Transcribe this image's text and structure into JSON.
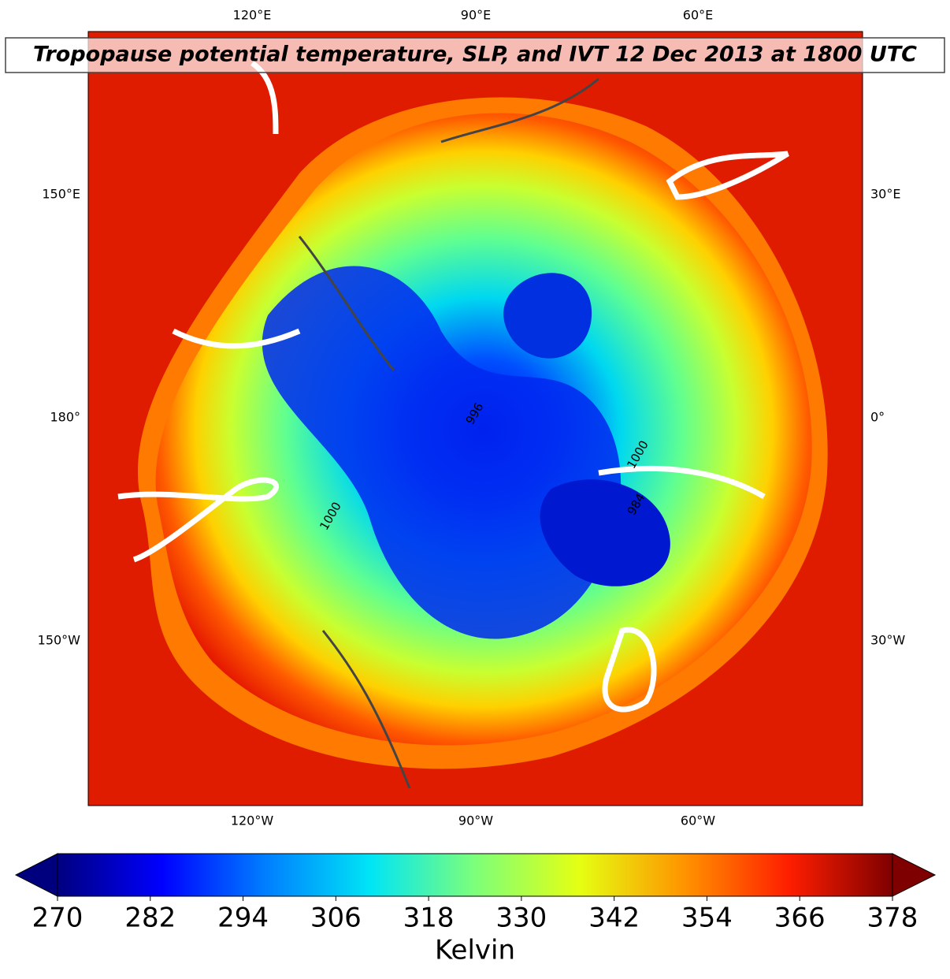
{
  "map": {
    "title": "Tropopause potential temperature, SLP, and IVT 12 Dec 2013 at 1800 UTC",
    "lon_labels": {
      "top": [
        "120°E",
        "90°E",
        "60°E"
      ],
      "bottom": [
        "120°W",
        "90°W",
        "60°W"
      ],
      "left": [
        "150°E",
        "180°",
        "150°W"
      ],
      "right": [
        "30°E",
        "0°",
        "30°W"
      ]
    },
    "contour_labels": [
      "996",
      "1000",
      "1000",
      "984"
    ]
  },
  "colorbar": {
    "label": "Kelvin",
    "lim": [
      270,
      378
    ],
    "ticks": [
      270,
      282,
      294,
      306,
      318,
      330,
      342,
      354,
      366,
      378
    ],
    "colors": [
      "#00007f",
      "#0000ff",
      "#007fff",
      "#00e5f5",
      "#7dff7a",
      "#e5ff12",
      "#ff9400",
      "#ff1e00",
      "#7f0000"
    ],
    "extend": "both"
  }
}
